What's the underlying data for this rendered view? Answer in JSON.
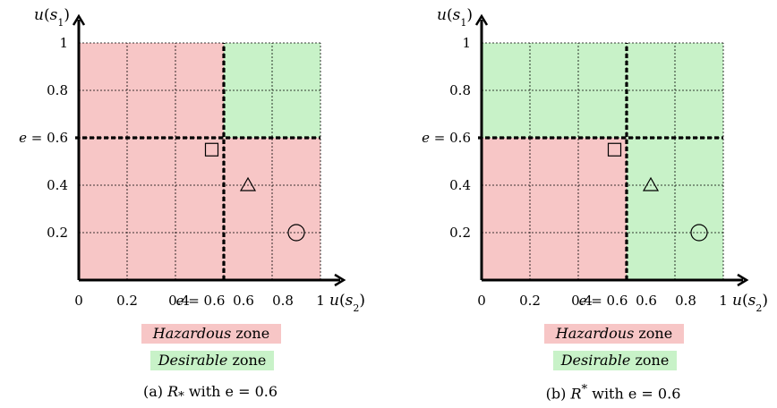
{
  "panels": [
    {
      "id": "a",
      "zones": "lower-star",
      "caption_prefix": "(a) ",
      "caption_symbol": "R",
      "caption_sub": "*",
      "caption_sup": "",
      "caption_suffix": " with e = 0.6"
    },
    {
      "id": "b",
      "zones": "upper-star",
      "caption_prefix": "(b) ",
      "caption_symbol": "R",
      "caption_sub": "",
      "caption_sup": "*",
      "caption_suffix": " with e = 0.6"
    }
  ],
  "axes": {
    "y_label": "u(s1)",
    "x_label": "u(s2)",
    "x_ticks": [
      "0",
      "0.2",
      "0.4",
      "e = 0.6",
      "0.6",
      "0.8",
      "1"
    ],
    "y_ticks": [
      "1",
      "0.8",
      "e = 0.6",
      "0.4",
      "0.2"
    ],
    "threshold_e": 0.6
  },
  "points": [
    {
      "shape": "square",
      "u_s2": 0.55,
      "u_s1": 0.55
    },
    {
      "shape": "triangle",
      "u_s2": 0.7,
      "u_s1": 0.4
    },
    {
      "shape": "circle",
      "u_s2": 0.9,
      "u_s1": 0.2
    }
  ],
  "legend": {
    "hazardous_word": "Hazardous",
    "desirable_word": "Desirable",
    "zone_word": " zone"
  },
  "colors": {
    "hazardous": "#f7c6c6",
    "desirable": "#c8f2c8",
    "axis": "#000000"
  }
}
